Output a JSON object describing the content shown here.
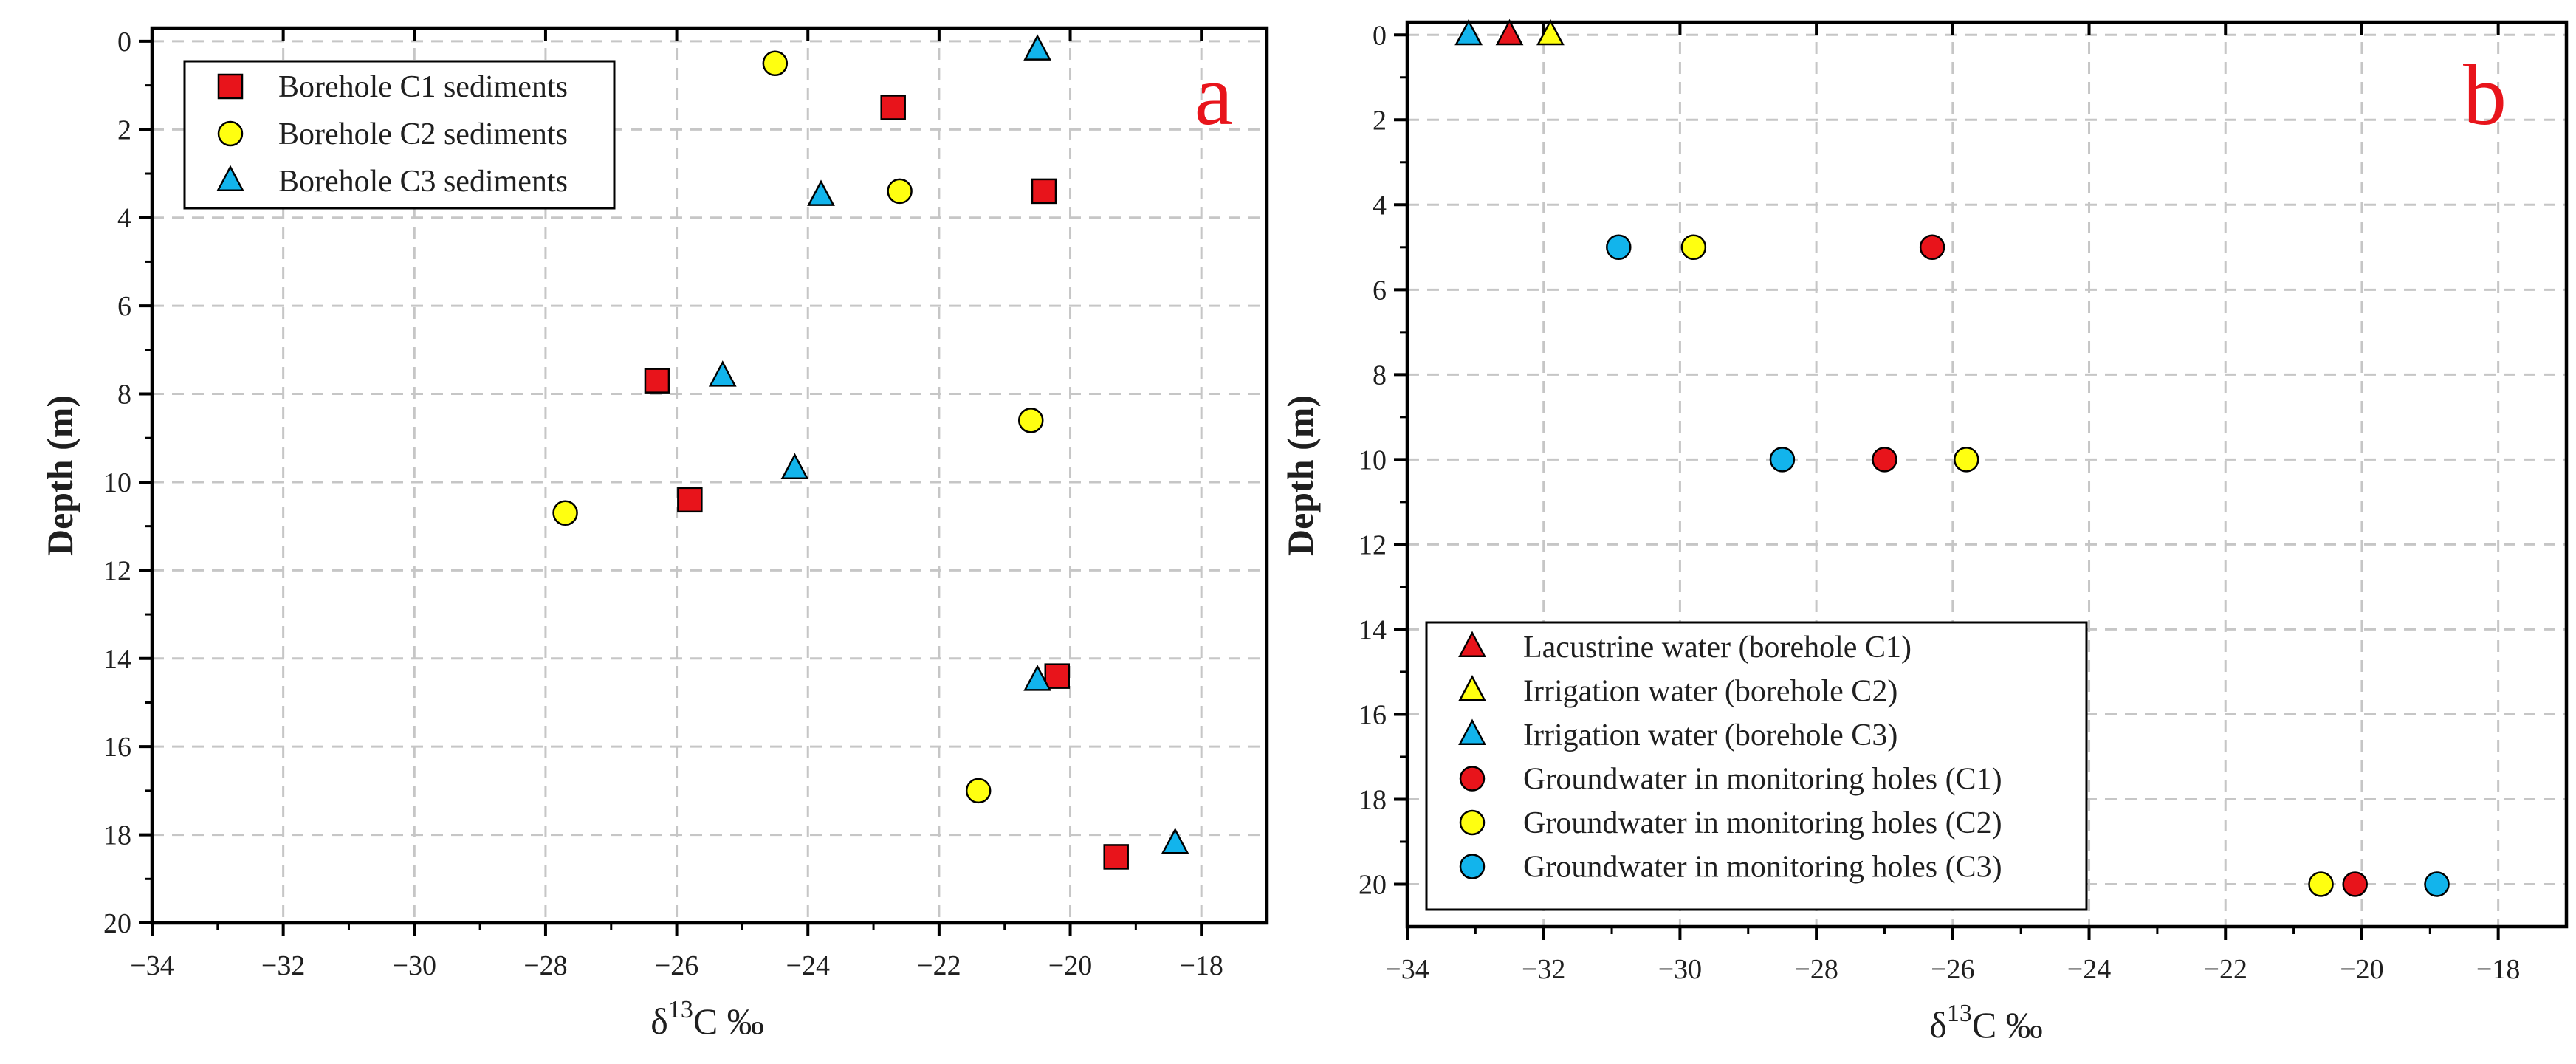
{
  "colors": {
    "red": "#e8141b",
    "yellow": "#ffff10",
    "cyan": "#12b4ec",
    "label": "#e8141b"
  },
  "chart_data": [
    {
      "panel": "a",
      "type": "scatter",
      "xlabel": "δ13C ‰",
      "xlabel_main": "δ",
      "xlabel_sup": "13",
      "xlabel_tail": "C ‰",
      "ylabel": "Depth (m)",
      "xlim": [
        -34,
        -17
      ],
      "ylim": [
        20,
        -0.3
      ],
      "xticks": [
        -34,
        -32,
        -30,
        -28,
        -26,
        -24,
        -22,
        -20,
        -18
      ],
      "yticks": [
        0,
        2,
        4,
        6,
        8,
        10,
        12,
        14,
        16,
        18,
        20
      ],
      "grid": true,
      "legend_position": "top-left",
      "series": [
        {
          "name": "Borehole C1 sediments",
          "marker": "square",
          "color": "red",
          "points": [
            [
              -22.7,
              1.5
            ],
            [
              -20.4,
              3.4
            ],
            [
              -26.3,
              7.7
            ],
            [
              -25.8,
              10.4
            ],
            [
              -20.2,
              14.4
            ],
            [
              -19.3,
              18.5
            ]
          ]
        },
        {
          "name": "Borehole C2 sediments",
          "marker": "circle",
          "color": "yellow",
          "points": [
            [
              -24.5,
              0.5
            ],
            [
              -22.6,
              3.4
            ],
            [
              -20.6,
              8.6
            ],
            [
              -27.7,
              10.7
            ],
            [
              -21.4,
              17.0
            ]
          ]
        },
        {
          "name": "Borehole C3 sediments",
          "marker": "triangle",
          "color": "cyan",
          "points": [
            [
              -20.5,
              0.2
            ],
            [
              -23.8,
              3.5
            ],
            [
              -25.3,
              7.6
            ],
            [
              -24.2,
              9.7
            ],
            [
              -20.5,
              14.5
            ],
            [
              -18.4,
              18.2
            ]
          ]
        }
      ]
    },
    {
      "panel": "b",
      "type": "scatter",
      "xlabel": "δ13C ‰",
      "xlabel_main": "δ",
      "xlabel_sup": "13",
      "xlabel_tail": "C ‰",
      "ylabel": "Depth (m)",
      "xlim": [
        -34,
        -17
      ],
      "ylim": [
        21,
        -0.3
      ],
      "xticks": [
        -34,
        -32,
        -30,
        -28,
        -26,
        -24,
        -22,
        -20,
        -18
      ],
      "yticks": [
        0,
        2,
        4,
        6,
        8,
        10,
        12,
        14,
        16,
        18,
        20
      ],
      "grid": true,
      "legend_position": "bottom-left",
      "series": [
        {
          "name": "Lacustrine water (borehole C1)",
          "marker": "triangle",
          "color": "red",
          "points": [
            [
              -32.5,
              0.0
            ]
          ]
        },
        {
          "name": "Irrigation water (borehole C2)",
          "marker": "triangle",
          "color": "yellow",
          "points": [
            [
              -31.9,
              0.0
            ]
          ]
        },
        {
          "name": "Irrigation water (borehole C3)",
          "marker": "triangle",
          "color": "cyan",
          "points": [
            [
              -33.1,
              0.0
            ]
          ]
        },
        {
          "name": "Groundwater in monitoring holes (C1)",
          "marker": "circle",
          "color": "red",
          "points": [
            [
              -26.3,
              5.0
            ],
            [
              -27.0,
              10.0
            ],
            [
              -20.1,
              20.0
            ]
          ]
        },
        {
          "name": "Groundwater in monitoring holes (C2)",
          "marker": "circle",
          "color": "yellow",
          "points": [
            [
              -29.8,
              5.0
            ],
            [
              -25.8,
              10.0
            ],
            [
              -20.6,
              20.0
            ]
          ]
        },
        {
          "name": "Groundwater in monitoring holes (C3)",
          "marker": "circle",
          "color": "cyan",
          "points": [
            [
              -30.9,
              5.0
            ],
            [
              -28.5,
              10.0
            ],
            [
              -18.9,
              20.0
            ]
          ]
        }
      ]
    }
  ]
}
